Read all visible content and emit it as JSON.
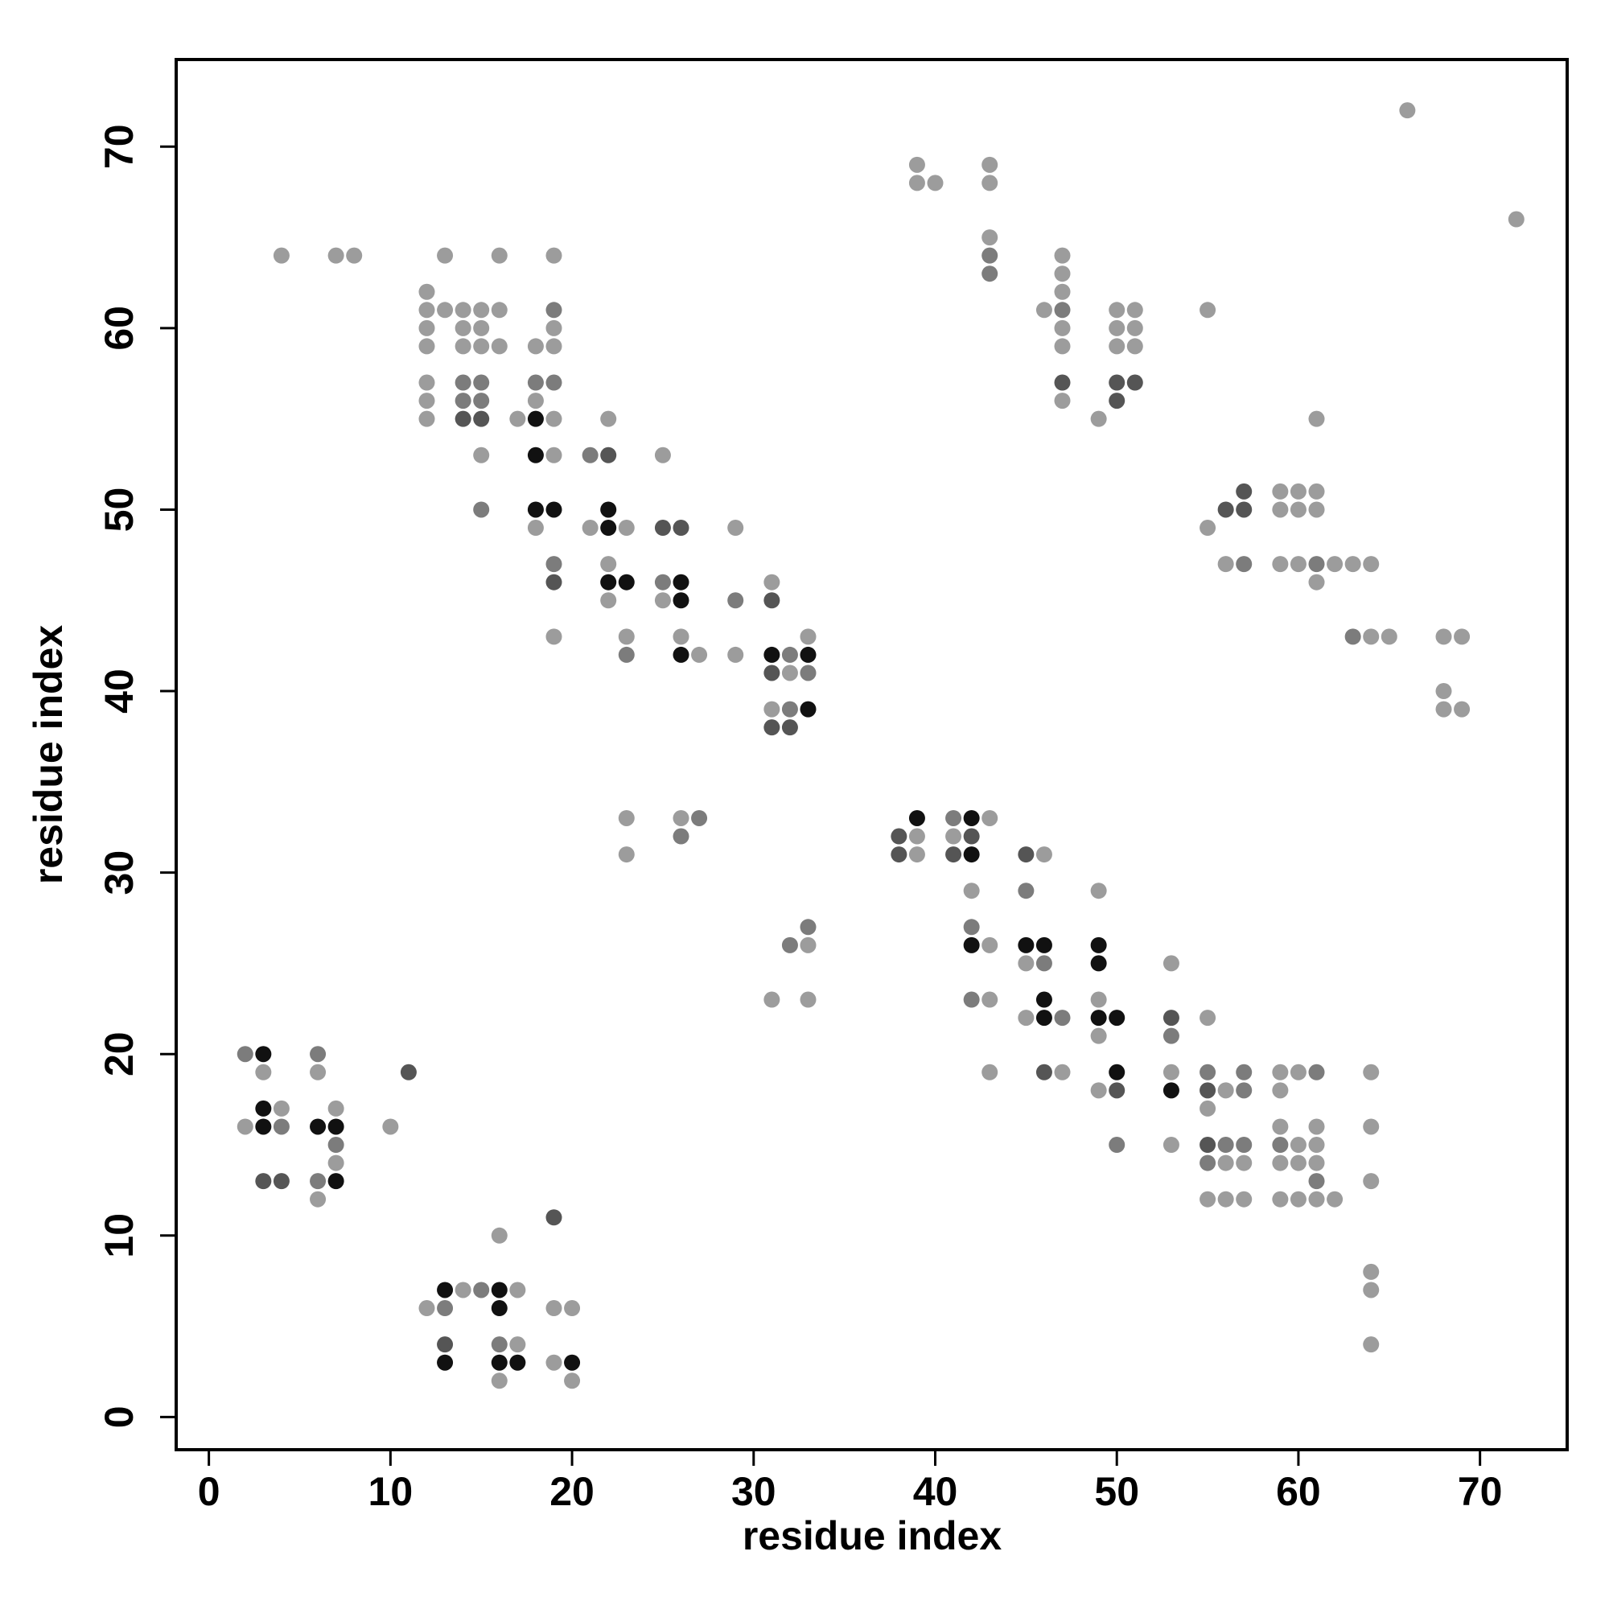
{
  "chart_data": {
    "type": "scatter",
    "xlabel": "residue index",
    "ylabel": "residue index",
    "xlim": [
      -1.8,
      74.8
    ],
    "ylim": [
      -1.8,
      74.8
    ],
    "xticks": [
      0,
      10,
      20,
      30,
      40,
      50,
      60,
      70
    ],
    "yticks": [
      0,
      10,
      20,
      30,
      40,
      50,
      60,
      70
    ],
    "grid": false,
    "series": [
      {
        "color": "#9c9c9c",
        "x": [
          3,
          2,
          4,
          6,
          7,
          7,
          6,
          10,
          12,
          14,
          17,
          16,
          17,
          16,
          19,
          20,
          19,
          20,
          4,
          7,
          8,
          13,
          16,
          19,
          12,
          12,
          12,
          12,
          12,
          12,
          12,
          13,
          14,
          14,
          14,
          15,
          15,
          15,
          15,
          16,
          16,
          17,
          18,
          18,
          18,
          19,
          19,
          19,
          19,
          19,
          22,
          21,
          23,
          22,
          22,
          23,
          25,
          25,
          26,
          27,
          29,
          29,
          31,
          32,
          33,
          31,
          23,
          23,
          26,
          31,
          33,
          33,
          39,
          39,
          43,
          41,
          42,
          43,
          43,
          43,
          46,
          45,
          45,
          47,
          49,
          49,
          49,
          49,
          53,
          53,
          53,
          55,
          56,
          55,
          56,
          57,
          55,
          56,
          57,
          59,
          59,
          59,
          59,
          59,
          60,
          60,
          60,
          60,
          61,
          61,
          61,
          61,
          62,
          64,
          64,
          64,
          64,
          64,
          64,
          39,
          39,
          40,
          43,
          43,
          43,
          66,
          72,
          46,
          47,
          47,
          47,
          47,
          47,
          47,
          49,
          50,
          51,
          50,
          51,
          50,
          51,
          55,
          55,
          56,
          59,
          60,
          61,
          59,
          60,
          61,
          59,
          60,
          62,
          63,
          64,
          61,
          61,
          64,
          65,
          68,
          69,
          68,
          68,
          69
        ],
        "y": [
          19,
          16,
          17,
          19,
          17,
          14,
          12,
          16,
          6,
          7,
          7,
          10,
          4,
          2,
          6,
          6,
          3,
          2,
          64,
          64,
          64,
          64,
          64,
          64,
          62,
          61,
          60,
          59,
          57,
          56,
          55,
          61,
          61,
          60,
          59,
          61,
          60,
          59,
          53,
          61,
          59,
          55,
          59,
          56,
          49,
          60,
          59,
          55,
          53,
          43,
          55,
          49,
          49,
          47,
          45,
          43,
          53,
          45,
          43,
          42,
          49,
          42,
          46,
          41,
          43,
          39,
          33,
          31,
          33,
          23,
          26,
          23,
          32,
          31,
          33,
          32,
          29,
          26,
          23,
          19,
          31,
          25,
          22,
          19,
          29,
          23,
          21,
          18,
          25,
          19,
          15,
          22,
          18,
          17,
          14,
          14,
          12,
          12,
          12,
          19,
          18,
          16,
          14,
          12,
          19,
          15,
          14,
          12,
          16,
          15,
          14,
          12,
          12,
          19,
          16,
          13,
          8,
          7,
          4,
          69,
          68,
          68,
          69,
          68,
          65,
          72,
          66,
          61,
          64,
          63,
          62,
          60,
          59,
          56,
          55,
          61,
          61,
          60,
          60,
          59,
          59,
          61,
          49,
          47,
          51,
          51,
          51,
          50,
          50,
          50,
          47,
          47,
          47,
          47,
          47,
          46,
          55,
          43,
          43,
          43,
          43,
          40,
          39,
          39
        ]
      },
      {
        "color": "#7c7c7c",
        "x": [
          2,
          4,
          6,
          7,
          6,
          13,
          15,
          16,
          14,
          14,
          15,
          15,
          15,
          18,
          19,
          19,
          19,
          21,
          23,
          25,
          29,
          32,
          33,
          32,
          27,
          26,
          32,
          33,
          41,
          42,
          42,
          46,
          47,
          45,
          50,
          53,
          55,
          57,
          57,
          56,
          57,
          55,
          59,
          61,
          61,
          43,
          43,
          47,
          57,
          61,
          63
        ],
        "y": [
          20,
          16,
          20,
          15,
          13,
          6,
          7,
          4,
          57,
          56,
          57,
          56,
          50,
          57,
          61,
          57,
          47,
          53,
          42,
          46,
          45,
          42,
          41,
          39,
          33,
          32,
          26,
          27,
          33,
          27,
          23,
          25,
          22,
          29,
          15,
          21,
          19,
          19,
          18,
          15,
          15,
          14,
          15,
          19,
          13,
          64,
          63,
          61,
          47,
          47,
          43
        ]
      },
      {
        "color": "#555555",
        "x": [
          3,
          4,
          11,
          19,
          13,
          14,
          15,
          19,
          22,
          25,
          26,
          31,
          31,
          31,
          32,
          38,
          38,
          42,
          41,
          45,
          46,
          50,
          53,
          55,
          55,
          47,
          50,
          51,
          50,
          56,
          57,
          57
        ],
        "y": [
          13,
          13,
          19,
          11,
          4,
          55,
          55,
          46,
          53,
          49,
          49,
          45,
          41,
          38,
          38,
          32,
          31,
          32,
          31,
          31,
          19,
          18,
          22,
          18,
          15,
          57,
          57,
          57,
          56,
          50,
          51,
          50
        ]
      },
      {
        "color": "#111111",
        "x": [
          3,
          3,
          3,
          6,
          7,
          7,
          13,
          16,
          16,
          13,
          16,
          17,
          20,
          18,
          18,
          18,
          19,
          22,
          22,
          22,
          23,
          26,
          26,
          26,
          31,
          33,
          33,
          39,
          42,
          42,
          42,
          45,
          46,
          46,
          46,
          49,
          49,
          49,
          50,
          50,
          53
        ],
        "y": [
          20,
          17,
          16,
          16,
          16,
          13,
          7,
          7,
          6,
          3,
          3,
          3,
          3,
          55,
          53,
          50,
          50,
          50,
          49,
          46,
          46,
          46,
          45,
          42,
          42,
          42,
          39,
          33,
          33,
          31,
          26,
          26,
          26,
          23,
          22,
          26,
          25,
          22,
          22,
          19,
          18
        ]
      }
    ]
  }
}
